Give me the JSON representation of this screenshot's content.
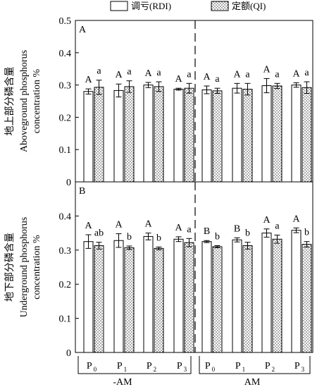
{
  "legend": {
    "rdi_label": "调亏(RDI)",
    "qi_label": "定额(QI)"
  },
  "chart_data": [
    {
      "type": "bar",
      "panel_letter": "A",
      "ylabel_lines": [
        "地上部分磷含量",
        "Aboveground phosphorus",
        "concentration %"
      ],
      "ylim": [
        0,
        0.5
      ],
      "yticks": [
        "0",
        "0.1",
        "0.2",
        "0.3",
        "0.4",
        "0.5"
      ],
      "categories": [
        "P0",
        "P1",
        "P2",
        "P3",
        "P0",
        "P1",
        "P2",
        "P3"
      ],
      "series": [
        {
          "name": "调亏(RDI)",
          "values": [
            0.28,
            0.283,
            0.3,
            0.287,
            0.285,
            0.29,
            0.298,
            0.3
          ],
          "errors": [
            0.008,
            0.02,
            0.008,
            0.003,
            0.012,
            0.015,
            0.022,
            0.007
          ],
          "letters": [
            "A",
            "A",
            "A",
            "A",
            "A",
            "A",
            "A",
            "A"
          ]
        },
        {
          "name": "定额(QI)",
          "values": [
            0.293,
            0.295,
            0.295,
            0.29,
            0.282,
            0.287,
            0.297,
            0.292
          ],
          "errors": [
            0.022,
            0.018,
            0.015,
            0.015,
            0.008,
            0.018,
            0.008,
            0.018
          ],
          "letters": [
            "a",
            "a",
            "a",
            "a",
            "a",
            "a",
            "a",
            "a"
          ]
        }
      ]
    },
    {
      "type": "bar",
      "panel_letter": "B",
      "ylabel_lines": [
        "地下部分磷含量",
        "Underground phosphorus",
        "concentration %"
      ],
      "ylim": [
        0,
        0.5
      ],
      "yticks": [
        "0",
        "0.1",
        "0.2",
        "0.3",
        "0.4"
      ],
      "categories": [
        "P0",
        "P1",
        "P2",
        "P3",
        "P0",
        "P1",
        "P2",
        "P3"
      ],
      "series": [
        {
          "name": "调亏(RDI)",
          "values": [
            0.325,
            0.328,
            0.34,
            0.332,
            0.325,
            0.33,
            0.35,
            0.358
          ],
          "errors": [
            0.02,
            0.02,
            0.01,
            0.007,
            0.003,
            0.006,
            0.012,
            0.007
          ],
          "letters": [
            "A",
            "A",
            "A",
            "A",
            "B",
            "B",
            "A",
            "A"
          ]
        },
        {
          "name": "定额(QI)",
          "values": [
            0.313,
            0.307,
            0.305,
            0.322,
            0.31,
            0.313,
            0.332,
            0.317
          ],
          "errors": [
            0.01,
            0.005,
            0.004,
            0.012,
            0.003,
            0.01,
            0.012,
            0.008
          ],
          "letters": [
            "ab",
            "b",
            "b",
            "a",
            "b",
            "b",
            "a",
            "b"
          ]
        }
      ]
    }
  ],
  "x_axis": {
    "ticks": [
      {
        "base": "P",
        "sub": "0"
      },
      {
        "base": "P",
        "sub": "1"
      },
      {
        "base": "P",
        "sub": "2"
      },
      {
        "base": "P",
        "sub": "3"
      },
      {
        "base": "P",
        "sub": "0"
      },
      {
        "base": "P",
        "sub": "1"
      },
      {
        "base": "P",
        "sub": "2"
      },
      {
        "base": "P",
        "sub": "3"
      }
    ],
    "groups": [
      "-AM",
      "AM"
    ]
  }
}
